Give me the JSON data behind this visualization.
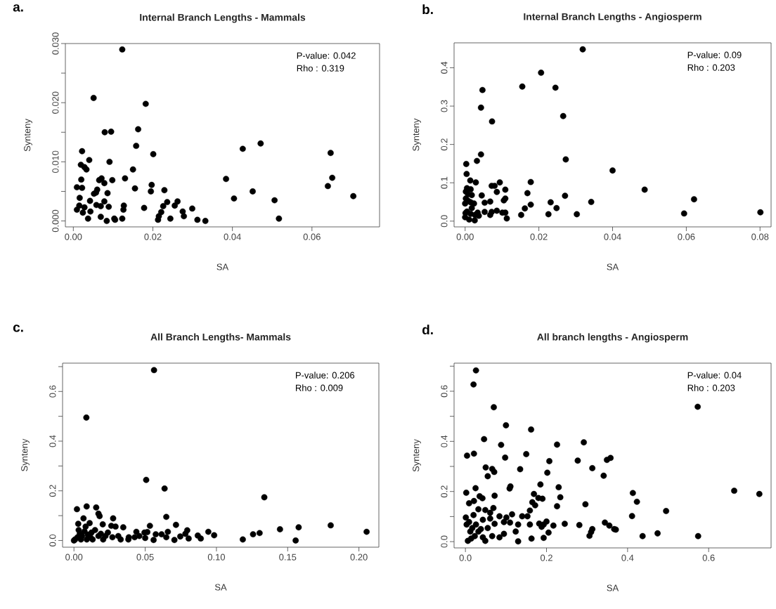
{
  "chart_data": [
    {
      "type": "scatter",
      "title": "Internal Branch Lengths - Mammals",
      "xlabel": "SA",
      "ylabel": "Synteny",
      "annotations": [
        "a.",
        "P-value: 0.042",
        "Rho : 0.319"
      ],
      "marker": "circle",
      "xlim": [
        -0.002,
        0.077
      ],
      "ylim": [
        -0.001,
        0.03
      ],
      "xticks": [
        {
          "value": 0,
          "label": "0.00"
        },
        {
          "value": 0.02,
          "label": "0.02"
        },
        {
          "value": 0.04,
          "label": "0.04"
        },
        {
          "value": 0.06,
          "label": "0.06"
        }
      ],
      "yticks": [
        {
          "value": 0,
          "label": "0.000"
        },
        {
          "value": 0.005,
          "label": null
        },
        {
          "value": 0.01,
          "label": "0.010"
        },
        {
          "value": 0.015,
          "label": null
        },
        {
          "value": 0.02,
          "label": "0.020"
        },
        {
          "value": 0.025,
          "label": null
        },
        {
          "value": 0.03,
          "label": "0.030"
        }
      ],
      "series": [
        {
          "color": "#000000",
          "x": [
            0.0123,
            0.0051,
            0.0182,
            0.0079,
            0.0095,
            0.0163,
            0.0158,
            0.0022,
            0.0201,
            0.004,
            0.0019,
            0.0028,
            0.0033,
            0.0091,
            0.015,
            0.013,
            0.002,
            0.0065,
            0.0071,
            0.0078,
            0.0098,
            0.0009,
            0.0022,
            0.0155,
            0.0197,
            0.0195,
            0.0229,
            0.006,
            0.0052,
            0.0057,
            0.0086,
            0.0016,
            0.0042,
            0.0078,
            0.0058,
            0.0069,
            0.0089,
            0.0015,
            0.0028,
            0.0009,
            0.0024,
            0.0043,
            0.0037,
            0.0069,
            0.0084,
            0.0105,
            0.0103,
            0.0123,
            0.0127,
            0.0126,
            0.0178,
            0.0213,
            0.0215,
            0.0221,
            0.0226,
            0.0236,
            0.0244,
            0.0255,
            0.0262,
            0.0275,
            0.0278,
            0.0299,
            0.0312,
            0.0332,
            0.0384,
            0.0404,
            0.0426,
            0.0471,
            0.0451,
            0.0506,
            0.0517,
            0.064,
            0.0647,
            0.0651,
            0.0704
          ],
          "values": [
            0.029,
            0.0208,
            0.0198,
            0.015,
            0.0151,
            0.0155,
            0.0127,
            0.0118,
            0.0113,
            0.0103,
            0.0095,
            0.0091,
            0.0087,
            0.01,
            0.0087,
            0.0072,
            0.007,
            0.0069,
            0.0072,
            0.0064,
            0.0069,
            0.0057,
            0.0056,
            0.0055,
            0.0061,
            0.005,
            0.0052,
            0.0053,
            0.0046,
            0.0048,
            0.0047,
            0.0039,
            0.0034,
            0.0033,
            0.0027,
            0.0025,
            0.0024,
            0.0026,
            0.0023,
            0.0019,
            0.0014,
            0.0016,
            0.0004,
            0.0007,
            0.0,
            0.0002,
            0.0004,
            0.0004,
            0.0026,
            0.0019,
            0.0022,
            0.0002,
            0.0008,
            0.0015,
            0.0025,
            0.0032,
            0.0004,
            0.0026,
            0.0033,
            0.0016,
            0.0008,
            0.0021,
            0.0002,
            0.0,
            0.0071,
            0.0038,
            0.0122,
            0.0131,
            0.005,
            0.0035,
            0.0004,
            0.0059,
            0.0115,
            0.0073,
            0.0042
          ]
        }
      ]
    },
    {
      "type": "scatter",
      "title": "Internal Branch Lengths - Angiosperm",
      "xlabel": "SA",
      "ylabel": "Synteny",
      "annotations": [
        "b.",
        "P-value: 0.09",
        "Rho : 0.203"
      ],
      "marker": "circle",
      "xlim": [
        -0.003,
        0.083
      ],
      "ylim": [
        -0.015,
        0.465
      ],
      "xticks": [
        {
          "value": 0,
          "label": "0.00"
        },
        {
          "value": 0.02,
          "label": "0.02"
        },
        {
          "value": 0.04,
          "label": "0.04"
        },
        {
          "value": 0.06,
          "label": "0.06"
        },
        {
          "value": 0.08,
          "label": "0.08"
        }
      ],
      "yticks": [
        {
          "value": 0,
          "label": "0.0"
        },
        {
          "value": 0.1,
          "label": "0.1"
        },
        {
          "value": 0.2,
          "label": "0.2"
        },
        {
          "value": 0.3,
          "label": "0.3"
        },
        {
          "value": 0.4,
          "label": "0.4"
        }
      ],
      "series": [
        {
          "color": "#000000",
          "x": [
            0.0319,
            0.0206,
            0.0155,
            0.0245,
            0.0047,
            0.0043,
            0.0073,
            0.0266,
            0.0273,
            0.0043,
            0.0032,
            0.0003,
            0.0004,
            0.0014,
            0.0029,
            0.04,
            0.0487,
            0.0621,
            0.0594,
            0.0801,
            0.0178,
            0.0169,
            0.0178,
            0.0162,
            0.0152,
            0.0232,
            0.0248,
            0.0226,
            0.0271,
            0.0303,
            0.0342,
            0.0094,
            0.0072,
            0.008,
            0.0086,
            0.0109,
            0.0105,
            0.0109,
            0.0045,
            0.0053,
            0.0068,
            0.0086,
            0.0101,
            0.0109,
            0.0113,
            0.0053,
            0.0072,
            0.0068,
            0.0034,
            0.0037,
            0.0026,
            0.0011,
            0.0,
            0.0002,
            0.0005,
            0.0015,
            0.0018,
            0.0002,
            0.0008,
            0.0,
            0.0015,
            0.0024,
            0.0018,
            0.0005,
            0.0015,
            0.0001,
            0.0027,
            0.0008
          ],
          "values": [
            0.448,
            0.387,
            0.351,
            0.348,
            0.342,
            0.296,
            0.26,
            0.274,
            0.161,
            0.174,
            0.157,
            0.149,
            0.123,
            0.106,
            0.101,
            0.132,
            0.082,
            0.057,
            0.02,
            0.023,
            0.102,
            0.073,
            0.043,
            0.033,
            0.016,
            0.049,
            0.034,
            0.018,
            0.066,
            0.018,
            0.05,
            0.101,
            0.092,
            0.092,
            0.076,
            0.082,
            0.054,
            0.059,
            0.067,
            0.048,
            0.051,
            0.027,
            0.022,
            0.022,
            0.007,
            0.024,
            0.024,
            0.016,
            0.022,
            0.014,
            0.002,
            0.004,
            0.01,
            0.077,
            0.086,
            0.083,
            0.068,
            0.059,
            0.053,
            0.046,
            0.049,
            0.046,
            0.034,
            0.025,
            0.019,
            0.021,
            0.016,
            0.07
          ]
        }
      ]
    },
    {
      "type": "scatter",
      "title": "All Branch Lengths- Mammals",
      "xlabel": "SA",
      "ylabel": "Synteny",
      "annotations": [
        "c.",
        "P-value: 0.206",
        "Rho : 0.009"
      ],
      "marker": "circle",
      "xlim": [
        -0.008,
        0.214
      ],
      "ylim": [
        -0.027,
        0.714
      ],
      "xticks": [
        {
          "value": 0,
          "label": "0.00"
        },
        {
          "value": 0.05,
          "label": "0.05"
        },
        {
          "value": 0.1,
          "label": "0.10"
        },
        {
          "value": 0.15,
          "label": "0.15"
        },
        {
          "value": 0.2,
          "label": "0.20"
        }
      ],
      "yticks": [
        {
          "value": 0,
          "label": "0.0"
        },
        {
          "value": 0.1,
          "label": null
        },
        {
          "value": 0.2,
          "label": "0.2"
        },
        {
          "value": 0.3,
          "label": null
        },
        {
          "value": 0.4,
          "label": "0.4"
        },
        {
          "value": 0.5,
          "label": null
        },
        {
          "value": 0.6,
          "label": "0.6"
        },
        {
          "value": 0.7,
          "label": null
        }
      ],
      "series": [
        {
          "color": "#000000",
          "x": [
            0.0562,
            0.0087,
            0.0507,
            0.0636,
            0.1336,
            0.0648,
            0.0021,
            0.0089,
            0.0156,
            0.0172,
            0.018,
            0.0067,
            0.0275,
            0.003,
            0.011,
            0.0202,
            0.0262,
            0.0292,
            0.0346,
            0.0533,
            0.0716,
            0.1577,
            0.1446,
            0.1802,
            0.2054,
            0.1303,
            0.1257,
            0.1185,
            0.1556,
            0.0943,
            0.0984,
            0.0795,
            0.0782,
            0.0746,
            0.0869,
            0.089,
            0.0805,
            0.0705,
            0.0659,
            0.0648,
            0.0615,
            0.0574,
            0.0559,
            0.0515,
            0.0495,
            0.05,
            0.0438,
            0.0426,
            0.0385,
            0.0382,
            0.0459,
            0.0328,
            0.0311,
            0.0238,
            0.0221,
            0.0205,
            0.0172,
            0.0148,
            0.0123,
            0.0115,
            0.009,
            0.0074,
            0.0057,
            0.0041,
            0.0025,
            0.0008,
            0.0,
            0.0049,
            0.0082,
            0.0098,
            0.0131,
            0.0189,
            0.027,
            0.0033
          ],
          "values": [
            0.686,
            0.495,
            0.244,
            0.209,
            0.174,
            0.095,
            0.126,
            0.137,
            0.133,
            0.108,
            0.098,
            0.089,
            0.089,
            0.067,
            0.07,
            0.065,
            0.059,
            0.056,
            0.053,
            0.059,
            0.063,
            0.053,
            0.045,
            0.061,
            0.035,
            0.03,
            0.025,
            0.004,
            0.0,
            0.035,
            0.021,
            0.041,
            0.027,
            0.016,
            0.02,
            0.008,
            0.008,
            0.002,
            0.035,
            0.013,
            0.025,
            0.025,
            0.002,
            0.034,
            0.032,
            0.01,
            0.035,
            0.013,
            0.013,
            0.004,
            0.018,
            0.004,
            0.018,
            0.032,
            0.018,
            0.004,
            0.018,
            0.042,
            0.032,
            0.013,
            0.004,
            0.037,
            0.018,
            0.027,
            0.013,
            0.004,
            0.0,
            0.004,
            0.056,
            0.023,
            0.004,
            0.027,
            0.013,
            0.042
          ]
        }
      ]
    },
    {
      "type": "scatter",
      "title": "All branch lengths - Angiosperm",
      "xlabel": "SA",
      "ylabel": "Synteny",
      "annotations": [
        "d.",
        "P-value: 0.04",
        "Rho : 0.203"
      ],
      "marker": "circle",
      "xlim": [
        -0.028,
        0.754
      ],
      "ylim": [
        -0.025,
        0.712
      ],
      "xticks": [
        {
          "value": 0,
          "label": "0.0"
        },
        {
          "value": 0.2,
          "label": "0.2"
        },
        {
          "value": 0.4,
          "label": "0.4"
        },
        {
          "value": 0.6,
          "label": "0.6"
        }
      ],
      "yticks": [
        {
          "value": 0,
          "label": "0.0"
        },
        {
          "value": 0.1,
          "label": null
        },
        {
          "value": 0.2,
          "label": "0.2"
        },
        {
          "value": 0.3,
          "label": null
        },
        {
          "value": 0.4,
          "label": "0.4"
        },
        {
          "value": 0.5,
          "label": null
        },
        {
          "value": 0.6,
          "label": "0.6"
        },
        {
          "value": 0.7,
          "label": null
        }
      ],
      "series": [
        {
          "color": "#000000",
          "x": [
            0.026,
            0.02,
            0.07,
            0.573,
            0.1,
            0.162,
            0.046,
            0.292,
            0.088,
            0.226,
            0.004,
            0.021,
            0.098,
            0.15,
            0.207,
            0.277,
            0.349,
            0.358,
            0.05,
            0.066,
            0.071,
            0.055,
            0.135,
            0.202,
            0.313,
            0.341,
            0.002,
            0.025,
            0.111,
            0.109,
            0.185,
            0.23,
            0.663,
            0.725,
            0.413,
            0.423,
            0.411,
            0.495,
            0.437,
            0.474,
            0.574,
            0.234,
            0.169,
            0.18,
            0.19,
            0.226,
            0.296,
            0.165,
            0.172,
            0.159,
            0.072,
            0.035,
            0.042,
            0.009,
            0.021,
            0.032,
            0.049,
            0.069,
            0.061,
            0.084,
            0.115,
            0.101,
            0.061,
            0.043,
            0.02,
            0.001,
            0.009,
            0.026,
            0.072,
            0.095,
            0.11,
            0.13,
            0.14,
            0.153,
            0.159,
            0.182,
            0.2,
            0.193,
            0.217,
            0.245,
            0.281,
            0.344,
            0.355,
            0.367,
            0.371,
            0.313,
            0.31,
            0.306,
            0.188,
            0.205,
            0.193,
            0.163,
            0.124,
            0.13,
            0.095,
            0.084,
            0.066,
            0.049,
            0.043,
            0.032,
            0.023,
            0.014,
            0.006,
            0.012,
            0.038,
            0.055,
            0.017,
            0.003
          ],
          "values": [
            0.683,
            0.627,
            0.536,
            0.538,
            0.464,
            0.447,
            0.409,
            0.396,
            0.386,
            0.387,
            0.343,
            0.351,
            0.335,
            0.349,
            0.321,
            0.323,
            0.326,
            0.334,
            0.296,
            0.29,
            0.278,
            0.261,
            0.289,
            0.275,
            0.293,
            0.263,
            0.195,
            0.213,
            0.22,
            0.212,
            0.228,
            0.217,
            0.203,
            0.19,
            0.194,
            0.159,
            0.102,
            0.122,
            0.022,
            0.033,
            0.022,
            0.177,
            0.19,
            0.174,
            0.171,
            0.141,
            0.149,
            0.157,
            0.145,
            0.124,
            0.183,
            0.181,
            0.173,
            0.153,
            0.162,
            0.129,
            0.126,
            0.134,
            0.115,
            0.101,
            0.109,
            0.096,
            0.092,
            0.087,
            0.106,
            0.096,
            0.078,
            0.068,
            0.071,
            0.078,
            0.076,
            0.068,
            0.101,
            0.101,
            0.068,
            0.072,
            0.08,
            0.068,
            0.064,
            0.071,
            0.066,
            0.076,
            0.064,
            0.05,
            0.048,
            0.05,
            0.038,
            0.023,
            0.059,
            0.036,
            0.015,
            0.012,
            0.04,
            0.001,
            0.031,
            0.017,
            0.022,
            0.003,
            0.017,
            0.04,
            0.022,
            0.012,
            0.003,
            0.04,
            0.05,
            0.054,
            0.054,
            0.068
          ]
        }
      ]
    }
  ]
}
